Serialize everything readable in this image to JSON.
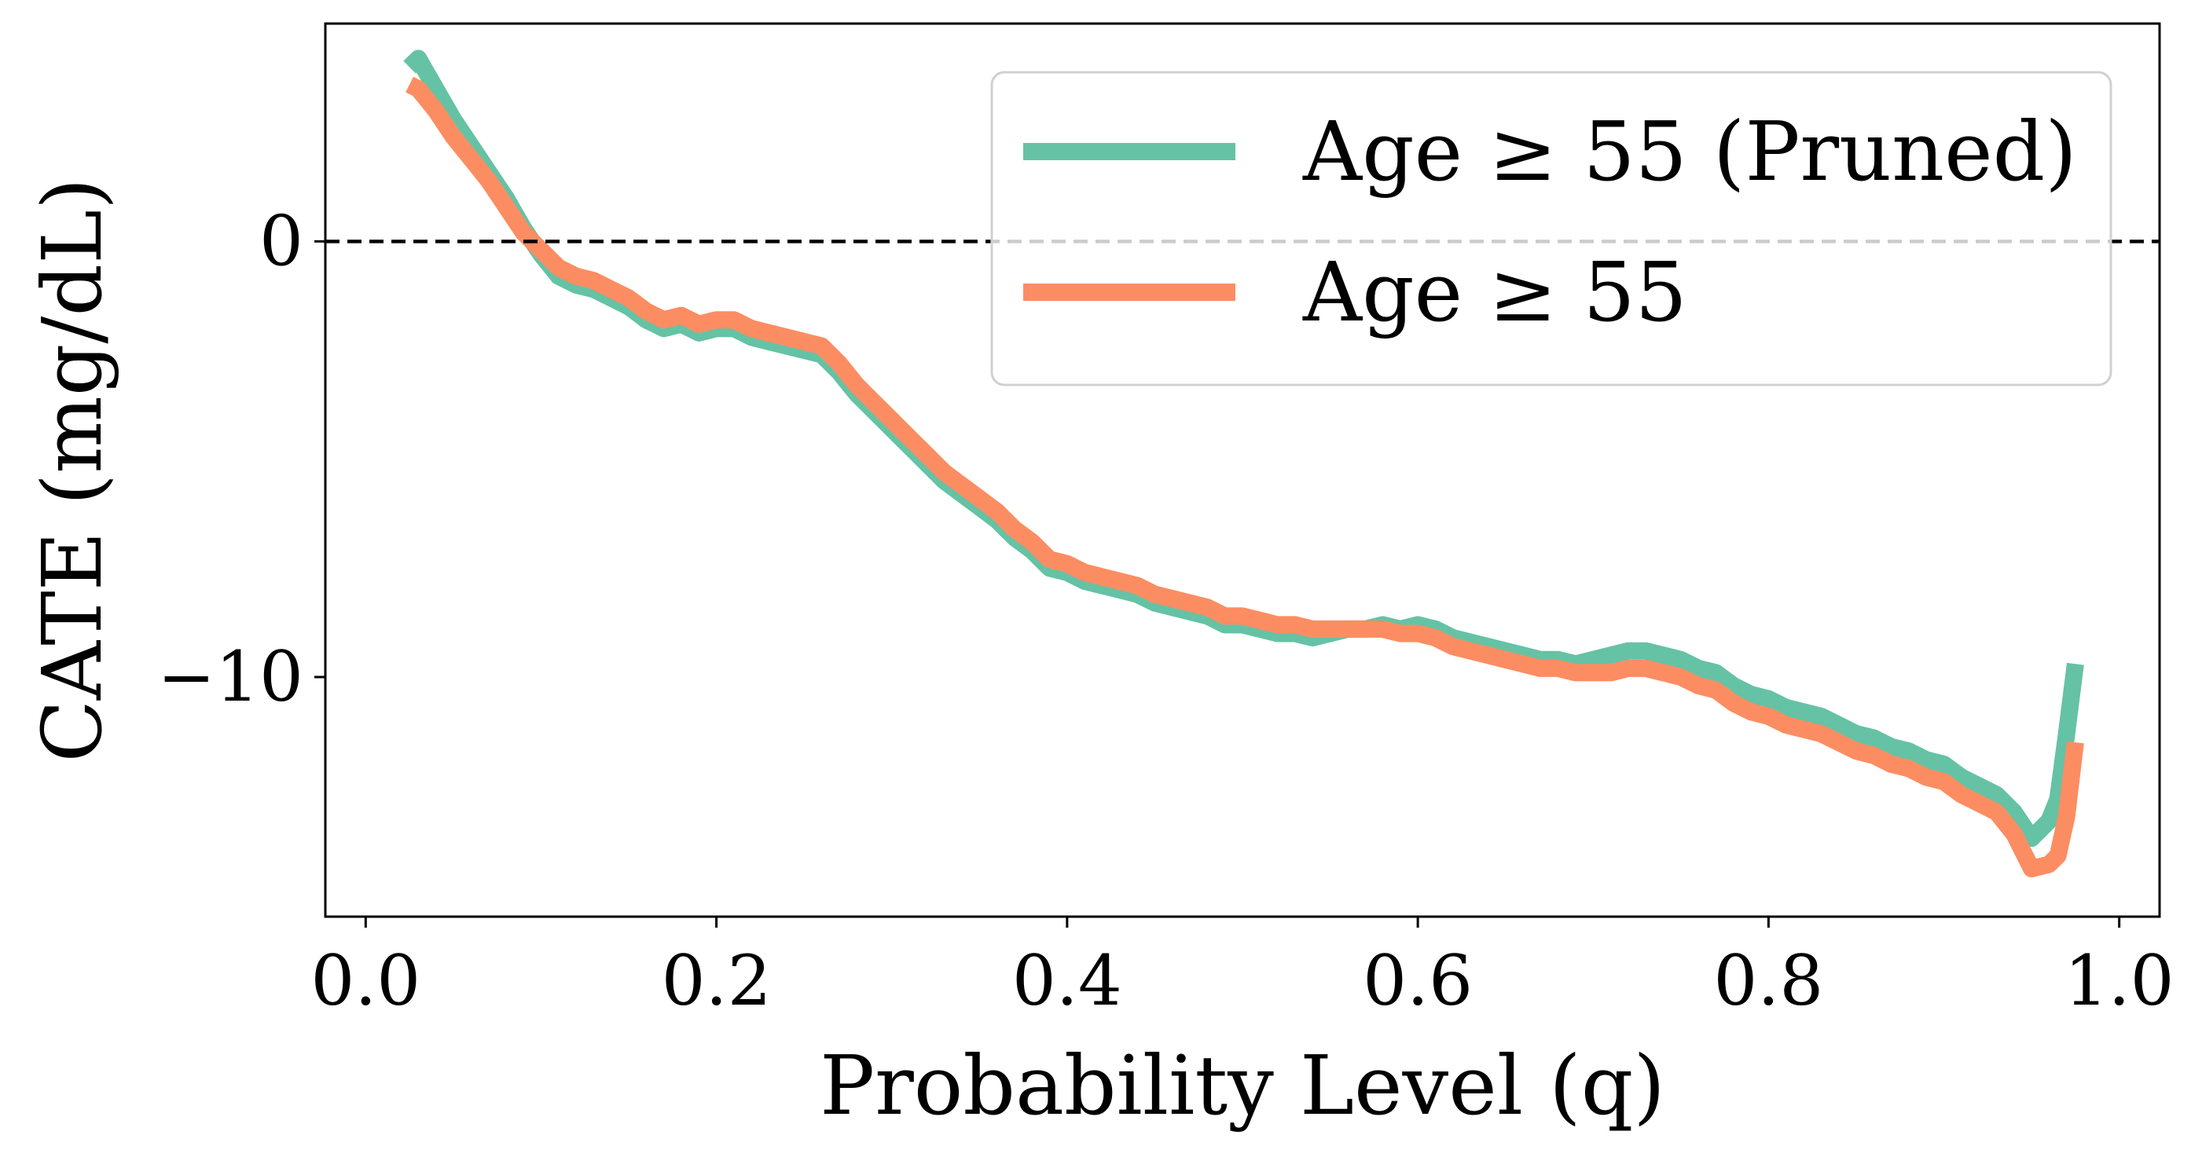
{
  "chart_data": {
    "type": "line",
    "title": "",
    "xlabel": "Probability Level (q)",
    "ylabel": "CATE (mg/dL)",
    "xlim": [
      -0.023,
      1.023
    ],
    "ylim": [
      -15.5,
      5.0
    ],
    "xticks": [
      0.0,
      0.2,
      0.4,
      0.6,
      0.8,
      1.0
    ],
    "xtick_labels": [
      "0.0",
      "0.2",
      "0.4",
      "0.6",
      "0.8",
      "1.0"
    ],
    "yticks": [
      0,
      -10
    ],
    "ytick_labels": [
      "0",
      "−10"
    ],
    "reference_line": {
      "y": 0,
      "style": "dashed",
      "color": "#000000"
    },
    "grid": false,
    "legend_position": "upper right",
    "series": [
      {
        "name": "Age ≥ 55 (Pruned)",
        "color": "#66c2a5",
        "x": [
          0.025,
          0.03,
          0.04,
          0.05,
          0.06,
          0.07,
          0.08,
          0.09,
          0.1,
          0.11,
          0.12,
          0.13,
          0.14,
          0.15,
          0.16,
          0.17,
          0.18,
          0.19,
          0.2,
          0.21,
          0.22,
          0.23,
          0.24,
          0.25,
          0.26,
          0.27,
          0.28,
          0.29,
          0.3,
          0.31,
          0.32,
          0.33,
          0.34,
          0.35,
          0.36,
          0.37,
          0.38,
          0.39,
          0.4,
          0.41,
          0.42,
          0.43,
          0.44,
          0.45,
          0.46,
          0.47,
          0.48,
          0.49,
          0.5,
          0.51,
          0.52,
          0.53,
          0.54,
          0.55,
          0.56,
          0.57,
          0.58,
          0.59,
          0.6,
          0.61,
          0.62,
          0.63,
          0.64,
          0.65,
          0.66,
          0.67,
          0.68,
          0.69,
          0.7,
          0.71,
          0.72,
          0.73,
          0.74,
          0.75,
          0.76,
          0.77,
          0.78,
          0.79,
          0.8,
          0.81,
          0.82,
          0.83,
          0.84,
          0.85,
          0.86,
          0.87,
          0.88,
          0.89,
          0.9,
          0.91,
          0.92,
          0.93,
          0.94,
          0.95,
          0.96,
          0.965,
          0.97,
          0.975
        ],
        "y": [
          4.0,
          4.2,
          3.5,
          2.8,
          2.2,
          1.6,
          1.0,
          0.3,
          -0.3,
          -0.8,
          -1.0,
          -1.1,
          -1.3,
          -1.5,
          -1.8,
          -2.0,
          -1.9,
          -2.1,
          -2.0,
          -2.0,
          -2.2,
          -2.3,
          -2.4,
          -2.5,
          -2.6,
          -3.0,
          -3.5,
          -3.9,
          -4.3,
          -4.7,
          -5.1,
          -5.5,
          -5.8,
          -6.1,
          -6.4,
          -6.8,
          -7.1,
          -7.5,
          -7.6,
          -7.8,
          -7.9,
          -8.0,
          -8.1,
          -8.3,
          -8.4,
          -8.5,
          -8.6,
          -8.8,
          -8.8,
          -8.9,
          -9.0,
          -9.0,
          -9.1,
          -9.0,
          -8.9,
          -8.9,
          -8.8,
          -8.9,
          -8.8,
          -8.9,
          -9.1,
          -9.2,
          -9.3,
          -9.4,
          -9.5,
          -9.6,
          -9.6,
          -9.7,
          -9.6,
          -9.5,
          -9.4,
          -9.4,
          -9.5,
          -9.6,
          -9.8,
          -9.9,
          -10.2,
          -10.4,
          -10.5,
          -10.7,
          -10.8,
          -10.9,
          -11.1,
          -11.3,
          -11.4,
          -11.6,
          -11.7,
          -11.9,
          -12.0,
          -12.3,
          -12.5,
          -12.7,
          -13.1,
          -13.7,
          -13.3,
          -12.8,
          -11.3,
          -9.7
        ]
      },
      {
        "name": "Age ≥ 55",
        "color": "#fc8d62",
        "x": [
          0.025,
          0.03,
          0.04,
          0.05,
          0.06,
          0.07,
          0.08,
          0.09,
          0.1,
          0.11,
          0.12,
          0.13,
          0.14,
          0.15,
          0.16,
          0.17,
          0.18,
          0.19,
          0.2,
          0.21,
          0.22,
          0.23,
          0.24,
          0.25,
          0.26,
          0.27,
          0.28,
          0.29,
          0.3,
          0.31,
          0.32,
          0.33,
          0.34,
          0.35,
          0.36,
          0.37,
          0.38,
          0.39,
          0.4,
          0.41,
          0.42,
          0.43,
          0.44,
          0.45,
          0.46,
          0.47,
          0.48,
          0.49,
          0.5,
          0.51,
          0.52,
          0.53,
          0.54,
          0.55,
          0.56,
          0.57,
          0.58,
          0.59,
          0.6,
          0.61,
          0.62,
          0.63,
          0.64,
          0.65,
          0.66,
          0.67,
          0.68,
          0.69,
          0.7,
          0.71,
          0.72,
          0.73,
          0.74,
          0.75,
          0.76,
          0.77,
          0.78,
          0.79,
          0.8,
          0.81,
          0.82,
          0.83,
          0.84,
          0.85,
          0.86,
          0.87,
          0.88,
          0.89,
          0.9,
          0.91,
          0.92,
          0.93,
          0.94,
          0.95,
          0.96,
          0.965,
          0.97,
          0.975
        ],
        "y": [
          3.6,
          3.5,
          3.0,
          2.4,
          1.9,
          1.4,
          0.8,
          0.2,
          -0.2,
          -0.6,
          -0.8,
          -0.9,
          -1.1,
          -1.3,
          -1.6,
          -1.8,
          -1.7,
          -1.9,
          -1.8,
          -1.8,
          -2.0,
          -2.1,
          -2.2,
          -2.3,
          -2.4,
          -2.8,
          -3.3,
          -3.7,
          -4.1,
          -4.5,
          -4.9,
          -5.3,
          -5.6,
          -5.9,
          -6.2,
          -6.6,
          -6.9,
          -7.3,
          -7.4,
          -7.6,
          -7.7,
          -7.8,
          -7.9,
          -8.1,
          -8.2,
          -8.3,
          -8.4,
          -8.6,
          -8.6,
          -8.7,
          -8.8,
          -8.8,
          -8.9,
          -8.9,
          -8.9,
          -8.9,
          -8.9,
          -9.0,
          -9.0,
          -9.1,
          -9.3,
          -9.4,
          -9.5,
          -9.6,
          -9.7,
          -9.8,
          -9.8,
          -9.9,
          -9.9,
          -9.9,
          -9.8,
          -9.8,
          -9.9,
          -10.0,
          -10.2,
          -10.3,
          -10.6,
          -10.8,
          -10.9,
          -11.1,
          -11.2,
          -11.3,
          -11.5,
          -11.7,
          -11.8,
          -12.0,
          -12.1,
          -12.3,
          -12.4,
          -12.7,
          -12.9,
          -13.1,
          -13.6,
          -14.4,
          -14.3,
          -14.1,
          -13.2,
          -11.5
        ]
      }
    ]
  }
}
